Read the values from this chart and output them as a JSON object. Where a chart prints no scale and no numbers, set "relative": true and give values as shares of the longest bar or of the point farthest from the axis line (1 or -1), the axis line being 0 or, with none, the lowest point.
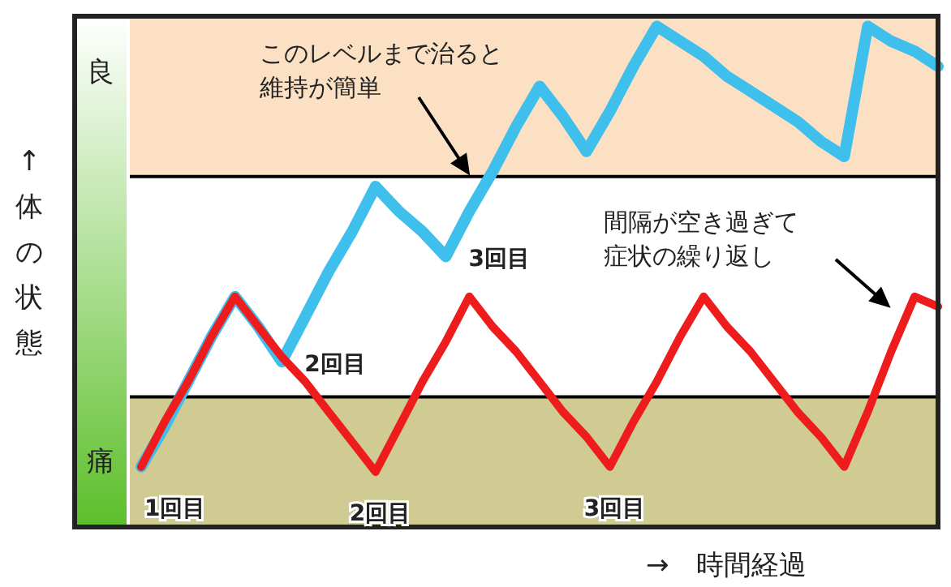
{
  "chart_data": {
    "type": "line",
    "relative": true,
    "xlabel": "→　時間経過",
    "ylabel": "↑体の状態",
    "categories": [
      null,
      null,
      null,
      null,
      null,
      null,
      null,
      null,
      null,
      null,
      null,
      null,
      null,
      null,
      null,
      null,
      null,
      null,
      null,
      null,
      null,
      null,
      null,
      null,
      null,
      null,
      null,
      null,
      null,
      null,
      null,
      null,
      null,
      null,
      null
    ],
    "series": [
      {
        "color": "#3fbfec",
        "values": [
          0.12,
          0.2,
          0.29,
          0.38,
          0.46,
          0.4,
          0.33,
          0.42,
          0.51,
          0.59,
          0.68,
          0.63,
          0.59,
          0.54,
          0.63,
          0.71,
          0.8,
          0.88,
          0.82,
          0.75,
          0.83,
          0.92,
          1,
          0.97,
          0.94,
          0.9,
          0.87,
          0.84,
          0.81,
          0.77,
          0.74,
          1,
          0.97,
          0.95,
          0.92
        ]
      },
      {
        "color": "#ee1c1c",
        "values": [
          0.12,
          0.21,
          0.29,
          0.38,
          0.46,
          0.4,
          0.34,
          0.29,
          0.23,
          0.17,
          0.11,
          0.2,
          0.29,
          0.37,
          0.46,
          0.4,
          0.35,
          0.29,
          0.23,
          0.18,
          0.12,
          0.21,
          0.29,
          0.38,
          0.46,
          0.4,
          0.35,
          0.29,
          0.23,
          0.18,
          0.12,
          0.23,
          0.35,
          0.46,
          0.44
        ]
      }
    ],
    "bands": [
      {
        "axis": "y",
        "from": 0.7,
        "to": 1.02,
        "color": "#fbe0c4"
      },
      {
        "axis": "y",
        "from": 0,
        "to": 0.26,
        "color": "#cfcb92"
      }
    ],
    "ref_lines": [
      {
        "axis": "y",
        "value": 0.7,
        "color": "#000000"
      },
      {
        "axis": "y",
        "value": 0.26,
        "color": "#000000"
      }
    ],
    "annotations": [
      "良",
      "痛",
      "このレベルまで治ると維持が簡単",
      "間隔が空き過ぎて症状の繰り返し",
      "1回目",
      "2回目",
      "2回目",
      "3回目",
      "3回目"
    ]
  }
}
